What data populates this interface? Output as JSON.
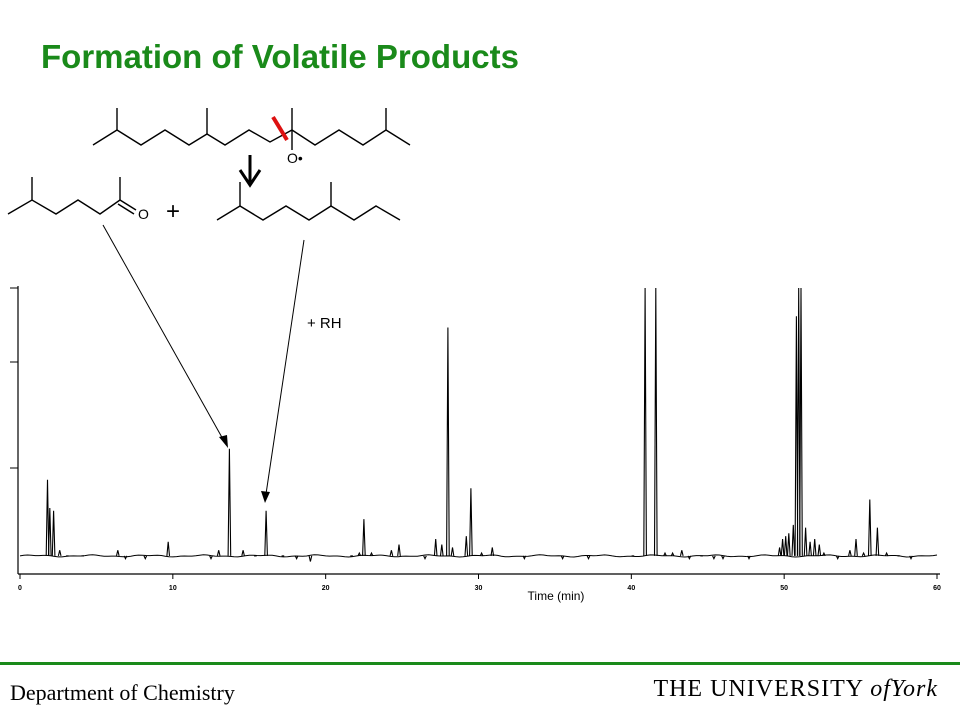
{
  "slide": {
    "title": "Formation of Volatile Products",
    "footer_left": "Department of Chemistry",
    "footer_right_prefix": "THE UNIVERSITY",
    "footer_right_of": "of",
    "footer_right_suffix": "York"
  },
  "scheme": {
    "radical_label": "O•",
    "ketone_label": "O",
    "plus_sign": "+",
    "rh_label": "+ RH"
  },
  "colors": {
    "title": "#1a8a1a",
    "bond_break": "#dd1111",
    "trace": "#000000"
  },
  "chart_data": {
    "type": "line",
    "title": "",
    "xlabel": "Time (min)",
    "ylabel": "",
    "xlim": [
      0,
      60
    ],
    "ylim": [
      0,
      100
    ],
    "x_ticks": [
      0,
      10,
      20,
      30,
      40,
      50,
      60
    ],
    "grid": false,
    "legend": "none",
    "baseline": 5,
    "peaks": [
      {
        "t": 1.8,
        "h": 32
      },
      {
        "t": 1.95,
        "h": 22
      },
      {
        "t": 2.2,
        "h": 21
      },
      {
        "t": 2.6,
        "h": 7
      },
      {
        "t": 3.1,
        "h": 5
      },
      {
        "t": 4.1,
        "h": 5
      },
      {
        "t": 6.4,
        "h": 7
      },
      {
        "t": 6.9,
        "h": 4
      },
      {
        "t": 8.2,
        "h": 4
      },
      {
        "t": 9.7,
        "h": 10
      },
      {
        "t": 12.5,
        "h": 4
      },
      {
        "t": 13.0,
        "h": 7
      },
      {
        "t": 13.7,
        "h": 43
      },
      {
        "t": 14.6,
        "h": 7
      },
      {
        "t": 15.4,
        "h": 5
      },
      {
        "t": 16.1,
        "h": 21
      },
      {
        "t": 17.2,
        "h": 5
      },
      {
        "t": 18.1,
        "h": 4
      },
      {
        "t": 19.0,
        "h": 3
      },
      {
        "t": 21.7,
        "h": 5
      },
      {
        "t": 22.2,
        "h": 6
      },
      {
        "t": 22.5,
        "h": 18
      },
      {
        "t": 23.0,
        "h": 6
      },
      {
        "t": 24.3,
        "h": 7
      },
      {
        "t": 24.8,
        "h": 9
      },
      {
        "t": 26.5,
        "h": 4
      },
      {
        "t": 27.2,
        "h": 11
      },
      {
        "t": 27.6,
        "h": 9
      },
      {
        "t": 28.0,
        "h": 86
      },
      {
        "t": 28.3,
        "h": 8
      },
      {
        "t": 29.2,
        "h": 12
      },
      {
        "t": 29.5,
        "h": 29
      },
      {
        "t": 30.2,
        "h": 6
      },
      {
        "t": 30.9,
        "h": 8
      },
      {
        "t": 33.0,
        "h": 4
      },
      {
        "t": 35.5,
        "h": 4
      },
      {
        "t": 37.2,
        "h": 4
      },
      {
        "t": 40.1,
        "h": 5
      },
      {
        "t": 40.9,
        "h": 100
      },
      {
        "t": 41.6,
        "h": 100
      },
      {
        "t": 42.2,
        "h": 6
      },
      {
        "t": 42.7,
        "h": 6
      },
      {
        "t": 43.3,
        "h": 7
      },
      {
        "t": 43.8,
        "h": 4
      },
      {
        "t": 44.6,
        "h": 5
      },
      {
        "t": 45.4,
        "h": 4
      },
      {
        "t": 46.0,
        "h": 4
      },
      {
        "t": 47.7,
        "h": 4
      },
      {
        "t": 49.7,
        "h": 8
      },
      {
        "t": 49.9,
        "h": 11
      },
      {
        "t": 50.1,
        "h": 12
      },
      {
        "t": 50.3,
        "h": 13
      },
      {
        "t": 50.6,
        "h": 16
      },
      {
        "t": 50.8,
        "h": 90
      },
      {
        "t": 50.95,
        "h": 100
      },
      {
        "t": 51.1,
        "h": 100
      },
      {
        "t": 51.4,
        "h": 15
      },
      {
        "t": 51.7,
        "h": 10
      },
      {
        "t": 52.0,
        "h": 11
      },
      {
        "t": 52.3,
        "h": 9
      },
      {
        "t": 52.6,
        "h": 6
      },
      {
        "t": 53.5,
        "h": 4
      },
      {
        "t": 54.3,
        "h": 7
      },
      {
        "t": 54.7,
        "h": 11
      },
      {
        "t": 55.2,
        "h": 6
      },
      {
        "t": 55.6,
        "h": 25
      },
      {
        "t": 56.1,
        "h": 15
      },
      {
        "t": 56.7,
        "h": 6
      },
      {
        "t": 57.5,
        "h": 5
      },
      {
        "t": 58.3,
        "h": 4
      }
    ]
  }
}
